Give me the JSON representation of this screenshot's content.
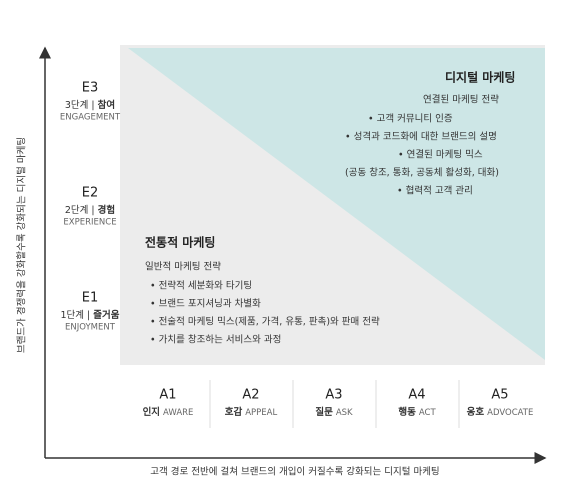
{
  "y_axis_label": "브랜드가 경쟁력을 강화할수록 강화되는 디지털 마케팅",
  "x_axis_label": "고객 경로 전반에 걸쳐 브랜드의 개입이 커질수록 강화되는 디지털 마케팅",
  "levels": [
    {
      "code": "E3",
      "step": "3단계",
      "name": "참여",
      "english": "ENGAGEMENT"
    },
    {
      "code": "E2",
      "step": "2단계",
      "name": "경험",
      "english": "EXPERIENCE"
    },
    {
      "code": "E1",
      "step": "1단계",
      "name": "즐거움",
      "english": "ENJOYMENT"
    }
  ],
  "digital_marketing": {
    "title": "디지털 마케팅",
    "subtitle": "연결된 마케팅 전략",
    "items": [
      "• 고객 커뮤니티 인증",
      "• 성격과 코드화에 대한 브랜드의 설명",
      "• 연결된 마케팅 믹스",
      "(공동 창조, 통화, 공동체 활성화, 대화)",
      "• 협력적 고객 관리"
    ]
  },
  "traditional_marketing": {
    "title": "전통적 마케팅",
    "subtitle": "일반적 마케팅 전략",
    "items": [
      "• 전략적 세분화와 타기팅",
      "• 브랜드 포지셔닝과 차별화",
      "• 전술적 마케팅 믹스(제품, 가격, 유통, 판촉)와 판매 전략",
      "• 가치를 창조하는 서비스와 과정"
    ]
  },
  "stages": [
    {
      "code": "A1",
      "name": "인지",
      "english": "AWARE"
    },
    {
      "code": "A2",
      "name": "호감",
      "english": "APPEAL"
    },
    {
      "code": "A3",
      "name": "질문",
      "english": "ASK"
    },
    {
      "code": "A4",
      "name": "행동",
      "english": "ACT"
    },
    {
      "code": "A5",
      "name": "옹호",
      "english": "ADVOCATE"
    }
  ]
}
